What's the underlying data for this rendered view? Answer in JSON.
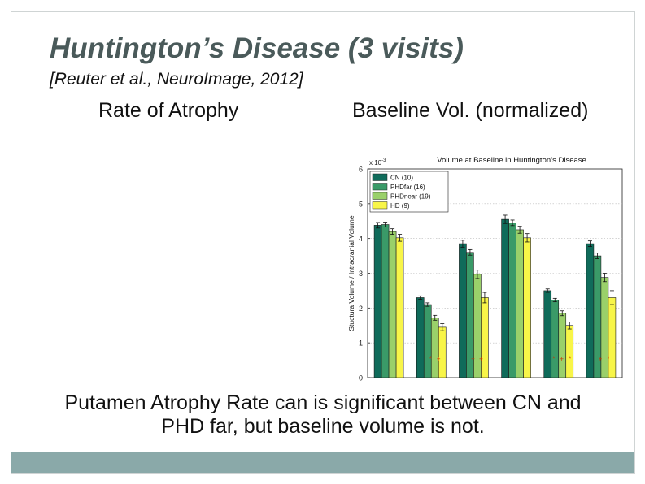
{
  "slide": {
    "title": "Huntington’s Disease (3 visits)",
    "citation": "[Reuter et al., NeuroImage, 2012]",
    "left_heading": "Rate of Atrophy",
    "right_heading": "Baseline Vol. (normalized)",
    "conclusion_line1": "Putamen Atrophy Rate can is significant between CN and",
    "conclusion_line2": "PHD far, but baseline volume is not.",
    "accent_color": "#8aa9a9",
    "title_color": "#4a5a5a"
  },
  "chart_data": {
    "type": "bar",
    "title": "Volume at Baseline in Huntington’s Disease",
    "ylabel": "Stuctura Volume / Intracranial Volume",
    "y_multiplier": "x 10",
    "y_exponent": "-3",
    "ylim": [
      0,
      6
    ],
    "yticks": [
      "0",
      "1",
      "2",
      "3",
      "4",
      "5",
      "6"
    ],
    "grid": "dotted horizontal",
    "legend_position": "top-left",
    "categories": [
      "LThalamus",
      "LCaudate",
      "LPutamen",
      "RThalamus",
      "RCaudate",
      "RPutamen"
    ],
    "series": [
      {
        "name": "CN (10)",
        "color": "#0f6b5a",
        "values": [
          4.38,
          2.3,
          3.85,
          4.55,
          2.5,
          3.85
        ],
        "errors": [
          0.08,
          0.05,
          0.1,
          0.12,
          0.05,
          0.08
        ]
      },
      {
        "name": "PHDfar (16)",
        "color": "#3a9a68",
        "values": [
          4.4,
          2.1,
          3.6,
          4.45,
          2.23,
          3.5
        ],
        "errors": [
          0.07,
          0.05,
          0.08,
          0.08,
          0.05,
          0.08
        ]
      },
      {
        "name": "PHDnear (19)",
        "color": "#9ad06a",
        "values": [
          4.2,
          1.72,
          2.97,
          4.25,
          1.85,
          2.88
        ],
        "errors": [
          0.08,
          0.07,
          0.12,
          0.1,
          0.07,
          0.12
        ]
      },
      {
        "name": "HD (9)",
        "color": "#f8f548",
        "values": [
          4.02,
          1.45,
          2.3,
          4.02,
          1.5,
          2.3
        ],
        "errors": [
          0.1,
          0.1,
          0.15,
          0.12,
          0.1,
          0.2
        ]
      }
    ],
    "markers": [
      {
        "category": "LCaudate",
        "symbols": [
          "*",
          "+"
        ]
      },
      {
        "category": "LPutamen",
        "symbols": [
          "+",
          "+"
        ]
      },
      {
        "category": "RCaudate",
        "symbols": [
          "*",
          "+",
          "*"
        ]
      },
      {
        "category": "RPutamen",
        "symbols": [
          "+",
          "*"
        ]
      }
    ]
  }
}
